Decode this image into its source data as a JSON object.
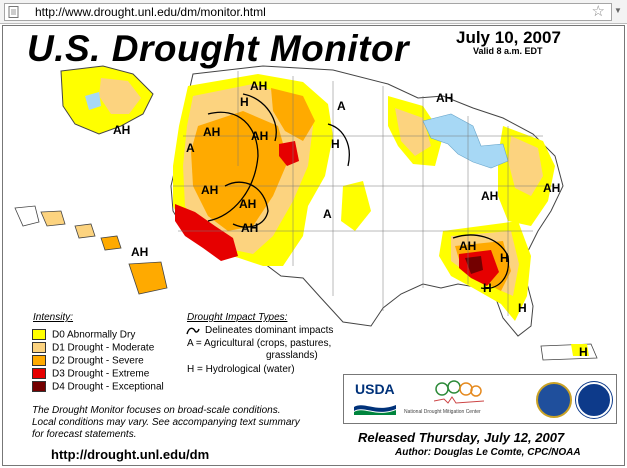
{
  "browser": {
    "url": "http://www.drought.unl.edu/dm/monitor.html"
  },
  "map": {
    "title": "U.S. Drought Monitor",
    "date": "July 10, 2007",
    "valid": "Valid 8 a.m. EDT",
    "region_labels": {
      "ah": "AH",
      "a": "A",
      "h": "H"
    },
    "colors": {
      "d0": "#ffff00",
      "d1": "#fcd37f",
      "d2": "#ffaa00",
      "d3": "#e60000",
      "d4": "#730000",
      "water": "#a7d8f5"
    }
  },
  "legend": {
    "title": "Intensity:",
    "items": [
      {
        "label": "D0 Abnormally Dry",
        "color": "#ffff00"
      },
      {
        "label": "D1 Drought - Moderate",
        "color": "#fcd37f"
      },
      {
        "label": "D2 Drought - Severe",
        "color": "#ffaa00"
      },
      {
        "label": "D3 Drought - Extreme",
        "color": "#e60000"
      },
      {
        "label": "D4 Drought - Exceptional",
        "color": "#730000"
      }
    ]
  },
  "impacts": {
    "title": "Drought Impact Types:",
    "line_label": "Delineates dominant impacts",
    "agricultural": "A = Agricultural (crops, pastures,",
    "agricultural_cont": "grasslands)",
    "hydrological": "H = Hydrological (water)"
  },
  "note": {
    "line1": "The Drought Monitor focuses on broad-scale conditions.",
    "line2": "Local conditions may vary. See accompanying text summary",
    "line3": "for forecast statements."
  },
  "site_url": "http://drought.unl.edu/dm",
  "logos": {
    "usda": "USDA",
    "ndmc": "National Drought Mitigation Center"
  },
  "release": "Released Thursday, July 12, 2007",
  "author": "Author: Douglas Le Comte, CPC/NOAA"
}
